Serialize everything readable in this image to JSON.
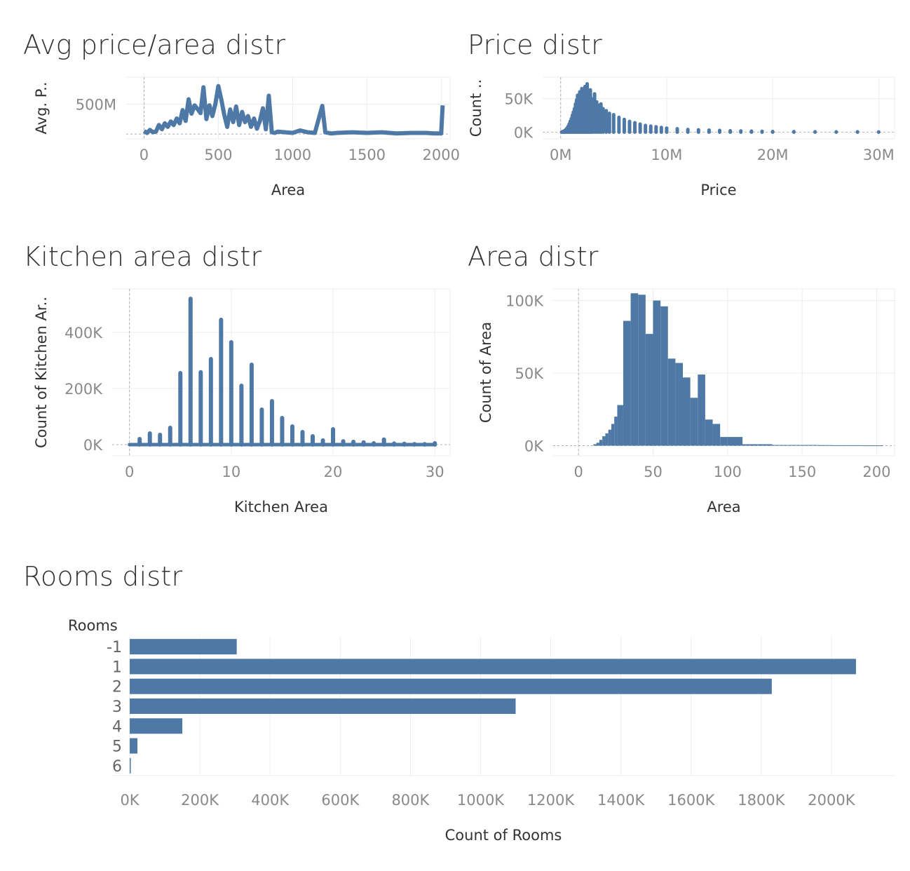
{
  "colors": {
    "bar": "#4e79a7",
    "grid": "#ececec",
    "text": "#333333",
    "tick": "#8a8a8a"
  },
  "chart_data": [
    {
      "id": "avg-price-area",
      "type": "line",
      "title": "Avg price/area distr",
      "xlabel": "Area",
      "ylabel": "Avg. P..",
      "xlim": [
        -120,
        2060
      ],
      "ylim": [
        -80000000,
        950000000
      ],
      "xticks": [
        0,
        500,
        1000,
        1500,
        2000
      ],
      "xtick_labels": [
        "0",
        "500",
        "1000",
        "1500",
        "2000"
      ],
      "yticks": [
        500000000
      ],
      "ytick_labels": [
        "500M"
      ],
      "series": [
        {
          "x": [
            0,
            20,
            40,
            60,
            80,
            100,
            120,
            140,
            160,
            180,
            200,
            220,
            240,
            260,
            280,
            300,
            320,
            340,
            360,
            380,
            400,
            420,
            440,
            460,
            480,
            500,
            520,
            540,
            560,
            580,
            600,
            620,
            640,
            660,
            680,
            700,
            720,
            740,
            760,
            780,
            800,
            820,
            840,
            860,
            880,
            900,
            950,
            1000,
            1050,
            1100,
            1150,
            1200,
            1220,
            1240,
            1260,
            1300,
            1400,
            1500,
            1600,
            1700,
            1800,
            1900,
            1950,
            2000,
            2010
          ],
          "y": [
            50000000,
            20000000,
            70000000,
            30000000,
            40000000,
            150000000,
            80000000,
            180000000,
            120000000,
            210000000,
            150000000,
            260000000,
            180000000,
            400000000,
            220000000,
            580000000,
            340000000,
            480000000,
            420000000,
            350000000,
            780000000,
            250000000,
            480000000,
            300000000,
            500000000,
            800000000,
            580000000,
            320000000,
            120000000,
            410000000,
            200000000,
            460000000,
            150000000,
            370000000,
            200000000,
            300000000,
            120000000,
            260000000,
            90000000,
            220000000,
            430000000,
            80000000,
            640000000,
            30000000,
            20000000,
            40000000,
            30000000,
            20000000,
            60000000,
            30000000,
            20000000,
            470000000,
            30000000,
            20000000,
            10000000,
            20000000,
            30000000,
            20000000,
            30000000,
            10000000,
            20000000,
            20000000,
            10000000,
            10000000,
            480000000
          ]
        }
      ]
    },
    {
      "id": "price-distr",
      "type": "bar",
      "title": "Price distr",
      "xlabel": "Price",
      "ylabel": "Count ..",
      "xlim": [
        -1700000,
        31500000
      ],
      "ylim": [
        -10000,
        82000
      ],
      "xticks": [
        0,
        10000000,
        20000000,
        30000000
      ],
      "xtick_labels": [
        "0M",
        "10M",
        "20M",
        "30M"
      ],
      "yticks": [
        0,
        50000
      ],
      "ytick_labels": [
        "0K",
        "50K"
      ],
      "bins": {
        "x": [
          100000,
          200000,
          300000,
          400000,
          500000,
          600000,
          700000,
          800000,
          900000,
          1000000,
          1100000,
          1200000,
          1300000,
          1400000,
          1500000,
          1600000,
          1700000,
          1800000,
          1900000,
          2000000,
          2100000,
          2200000,
          2300000,
          2400000,
          2500000,
          2600000,
          2700000,
          2800000,
          2900000,
          3000000,
          3200000,
          3400000,
          3600000,
          3800000,
          4000000,
          4300000,
          4600000,
          5000000,
          5500000,
          6000000,
          6500000,
          7000000,
          7500000,
          8000000,
          8500000,
          9000000,
          9500000,
          10000000,
          11000000,
          12000000,
          13000000,
          14000000,
          15000000,
          16000000,
          17000000,
          18000000,
          19000000,
          20000000,
          22000000,
          24000000,
          26000000,
          28000000,
          30000000
        ],
        "values": [
          300,
          800,
          1500,
          2500,
          4000,
          6000,
          8500,
          12000,
          16000,
          20000,
          25000,
          30000,
          35000,
          42000,
          48000,
          55000,
          52000,
          60000,
          58000,
          65000,
          55000,
          62000,
          68000,
          58000,
          72000,
          60000,
          52000,
          63000,
          50000,
          48000,
          57000,
          45000,
          40000,
          42000,
          35000,
          32000,
          28000,
          26000,
          22000,
          19000,
          16000,
          14000,
          12000,
          10000,
          9000,
          8000,
          7000,
          6000,
          5000,
          4000,
          3500,
          3000,
          2500,
          2000,
          1800,
          1500,
          1300,
          1000,
          800,
          600,
          500,
          400,
          300
        ]
      }
    },
    {
      "id": "kitchen-area-distr",
      "type": "bar",
      "title": "Kitchen area distr",
      "xlabel": "Kitchen Area",
      "ylabel": "Count of Kitchen Ar..",
      "xlim": [
        -1.7,
        31.5
      ],
      "ylim": [
        -40000,
        555000
      ],
      "xticks": [
        0,
        10,
        20,
        30
      ],
      "xtick_labels": [
        "0",
        "10",
        "20",
        "30"
      ],
      "yticks": [
        0,
        200000,
        400000
      ],
      "ytick_labels": [
        "0K",
        "200K",
        "400K"
      ],
      "bins": {
        "x": [
          1,
          2,
          3,
          4,
          5,
          6,
          7,
          8,
          9,
          10,
          11,
          12,
          13,
          14,
          15,
          16,
          17,
          18,
          19,
          20,
          21,
          22,
          23,
          24,
          25,
          26,
          27,
          28,
          29,
          30
        ],
        "values": [
          20000,
          40000,
          35000,
          60000,
          255000,
          520000,
          258000,
          305000,
          445000,
          365000,
          210000,
          285000,
          125000,
          155000,
          95000,
          65000,
          45000,
          30000,
          15000,
          55000,
          12000,
          10000,
          8000,
          5000,
          18000,
          4000,
          3000,
          2000,
          2000,
          5000
        ]
      }
    },
    {
      "id": "area-distr",
      "type": "bar",
      "title": "Area distr",
      "xlabel": "Area",
      "ylabel": "Count of Area",
      "xlim": [
        -17,
        212
      ],
      "ylim": [
        -7000,
        108000
      ],
      "xticks": [
        0,
        50,
        100,
        150,
        200
      ],
      "xtick_labels": [
        "0",
        "50",
        "100",
        "150",
        "200"
      ],
      "yticks": [
        0,
        50000,
        100000
      ],
      "ytick_labels": [
        "0K",
        "50K",
        "100K"
      ],
      "bins": {
        "left": [
          10,
          12,
          14,
          16,
          18,
          20,
          22,
          24,
          26,
          30,
          35,
          40,
          45,
          50,
          55,
          60,
          65,
          70,
          75,
          80,
          85,
          90,
          95,
          100,
          110,
          120,
          130,
          140,
          150,
          160,
          170,
          180,
          190,
          200,
          202
        ],
        "right": [
          12,
          14,
          16,
          18,
          20,
          22,
          24,
          26,
          30,
          35,
          40,
          45,
          50,
          55,
          60,
          65,
          70,
          75,
          80,
          85,
          90,
          95,
          100,
          110,
          120,
          130,
          140,
          150,
          160,
          170,
          180,
          190,
          200,
          202,
          204
        ],
        "values": [
          1000,
          2000,
          4000,
          6500,
          8500,
          11000,
          15000,
          20000,
          28000,
          86000,
          105000,
          104000,
          77000,
          100000,
          96000,
          60000,
          57000,
          47000,
          33000,
          49000,
          18000,
          15000,
          6000,
          6000,
          1000,
          1000,
          500,
          500,
          500,
          400,
          300,
          300,
          200,
          200,
          200
        ]
      }
    },
    {
      "id": "rooms-distr",
      "type": "bar",
      "title": "Rooms distr",
      "xlabel": "Count of Rooms",
      "ylabel": "Rooms",
      "orientation": "horizontal",
      "xlim": [
        -50000,
        2180000
      ],
      "xticks": [
        0,
        200000,
        400000,
        600000,
        800000,
        1000000,
        1200000,
        1400000,
        1600000,
        1800000,
        2000000
      ],
      "xtick_labels": [
        "0K",
        "200K",
        "400K",
        "600K",
        "800K",
        "1000K",
        "1200K",
        "1400K",
        "1600K",
        "1800K",
        "2000K"
      ],
      "categories": [
        "-1",
        "1",
        "2",
        "3",
        "4",
        "5",
        "6"
      ],
      "values": [
        305000,
        2070000,
        1830000,
        1100000,
        150000,
        22000,
        2500
      ]
    }
  ]
}
